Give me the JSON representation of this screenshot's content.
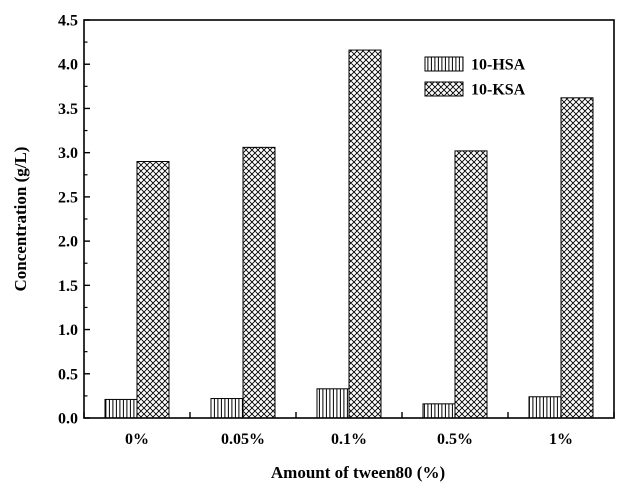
{
  "chart_data": {
    "type": "bar",
    "title": "",
    "xlabel": "Amount of tween80 (%)",
    "ylabel": "Concentration (g/L)",
    "ylim": [
      0,
      4.5
    ],
    "yticks": [
      "0.0",
      "0.5",
      "1.0",
      "1.5",
      "2.0",
      "2.5",
      "3.0",
      "3.5",
      "4.0",
      "4.5"
    ],
    "categories": [
      "0%",
      "0.05%",
      "0.1%",
      "0.5%",
      "1%"
    ],
    "series": [
      {
        "name": "10-HSA",
        "pattern": "vertical-lines",
        "values": [
          0.21,
          0.22,
          0.33,
          0.16,
          0.24
        ]
      },
      {
        "name": "10-KSA",
        "pattern": "crosshatch",
        "values": [
          2.9,
          3.06,
          4.16,
          3.02,
          3.62
        ]
      }
    ],
    "legend_position": "top-right",
    "grid": false,
    "colors": {
      "ink": "#000000",
      "fill": "#ffffff"
    }
  }
}
